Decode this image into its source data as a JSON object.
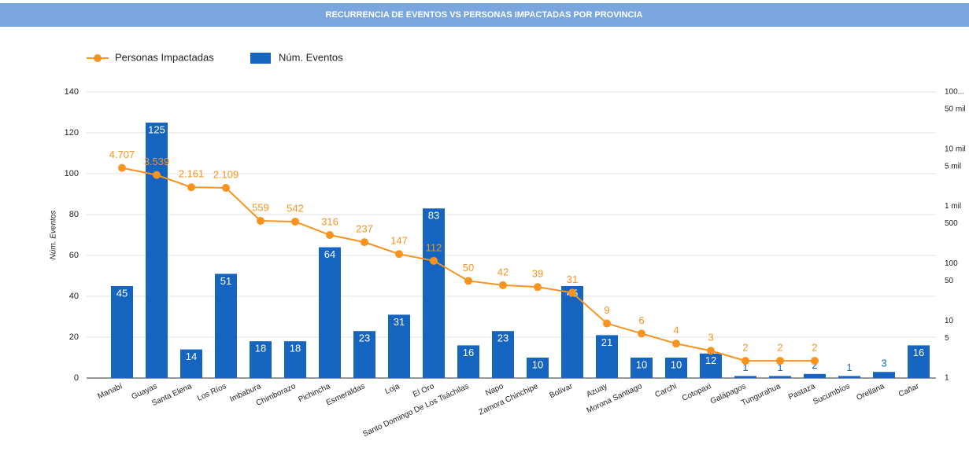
{
  "chart_data": {
    "type": "combo",
    "title": "RECURRENCIA DE EVENTOS VS PERSONAS IMPACTADAS POR PROVINCIA",
    "y_label": "Núm. Eventos",
    "categories": [
      "Manabí",
      "Guayas",
      "Santa Elena",
      "Los Ríos",
      "Imbabura",
      "Chimborazo",
      "Pichincha",
      "Esmeraldas",
      "Loja",
      "El Oro",
      "Santo Domingo De Los Tsáchilas",
      "Napo",
      "Zamora Chinchipe",
      "Bolívar",
      "Azuay",
      "Morona Santiago",
      "Carchi",
      "Cotopaxi",
      "Galápagos",
      "Tungurahua",
      "Pastaza",
      "Sucumbíos",
      "Orellana",
      "Cañar"
    ],
    "series": [
      {
        "name": "Personas Impactadas",
        "type": "line",
        "axis": "y2",
        "color": "#f7931e",
        "values": [
          4707,
          3539,
          2161,
          2109,
          559,
          542,
          316,
          237,
          147,
          112,
          50,
          42,
          39,
          31,
          9,
          6,
          4,
          3,
          2,
          2,
          2,
          null,
          null,
          null
        ],
        "value_labels": [
          "4.707",
          "3.539",
          "2.161",
          "2.109",
          "559",
          "542",
          "316",
          "237",
          "147",
          "112",
          "50",
          "42",
          "39",
          "31",
          "9",
          "6",
          "4",
          "3",
          "2",
          "2",
          "2",
          null,
          null,
          null
        ]
      },
      {
        "name": "Núm. Eventos",
        "type": "bar",
        "color": "#1565c0",
        "values": [
          45,
          125,
          14,
          51,
          18,
          18,
          64,
          23,
          31,
          83,
          16,
          23,
          10,
          45,
          21,
          10,
          10,
          12,
          1,
          1,
          2,
          1,
          3,
          16
        ]
      }
    ],
    "ylim": [
      0,
      140
    ],
    "yticks": [
      0,
      20,
      40,
      60,
      80,
      100,
      120,
      140
    ],
    "y2_log": true,
    "y2lim": [
      1,
      100000
    ],
    "y2ticks": [
      1,
      5,
      10,
      50,
      100,
      500,
      {
        "value": 1000,
        "label": "1 mil"
      },
      {
        "value": 5000,
        "label": "5 mil"
      },
      {
        "value": 10000,
        "label": "10 mil"
      },
      {
        "value": 50000,
        "label": "50 mil"
      },
      {
        "value": 100000,
        "label": "100..."
      }
    ],
    "grid": true
  }
}
